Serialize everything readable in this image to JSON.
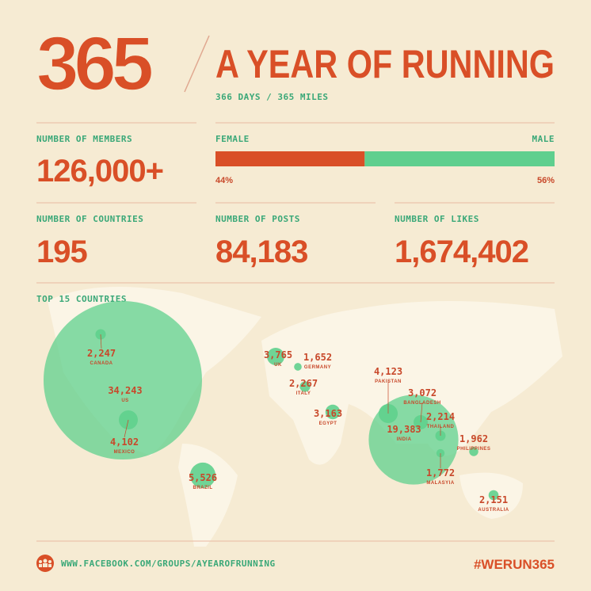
{
  "header": {
    "logo": "365",
    "title": "A YEAR OF RUNNING",
    "subtitle": "366 DAYS / 365 MILES"
  },
  "stats": {
    "members": {
      "label": "NUMBER OF MEMBERS",
      "value": "126,000+"
    },
    "countries": {
      "label": "NUMBER OF COUNTRIES",
      "value": "195"
    },
    "posts": {
      "label": "NUMBER OF POSTS",
      "value": "84,183"
    },
    "likes": {
      "label": "NUMBER OF LIKES",
      "value": "1,674,402"
    }
  },
  "gender": {
    "female": {
      "label": "FEMALE",
      "value": 44,
      "value_label": "44%",
      "color": "#d94f27"
    },
    "male": {
      "label": "MALE",
      "value": 56,
      "value_label": "56%",
      "color": "#5fcf8e"
    }
  },
  "top_countries": {
    "title": "TOP 15 COUNTRIES",
    "color": "#5fd08d",
    "countries": [
      {
        "name": "CANADA",
        "value": 2247,
        "label": "2,247"
      },
      {
        "name": "US",
        "value": 34243,
        "label": "34,243"
      },
      {
        "name": "MEXICO",
        "value": 4102,
        "label": "4,102"
      },
      {
        "name": "BRAZIL",
        "value": 5526,
        "label": "5,526"
      },
      {
        "name": "UK",
        "value": 3765,
        "label": "3,765"
      },
      {
        "name": "GERMANY",
        "value": 1652,
        "label": "1,652"
      },
      {
        "name": "ITALY",
        "value": 2267,
        "label": "2,267"
      },
      {
        "name": "EGYPT",
        "value": 3163,
        "label": "3,163"
      },
      {
        "name": "PAKISTAN",
        "value": 4123,
        "label": "4,123"
      },
      {
        "name": "BANGLADESH",
        "value": 3072,
        "label": "3,072"
      },
      {
        "name": "INDIA",
        "value": 19383,
        "label": "19,383"
      },
      {
        "name": "THAILAND",
        "value": 2214,
        "label": "2,214"
      },
      {
        "name": "PHILIPPINES",
        "value": 1962,
        "label": "1,962"
      },
      {
        "name": "MALASYIA",
        "value": 1772,
        "label": "1,772"
      },
      {
        "name": "AUSTRALIA",
        "value": 2151,
        "label": "2,151"
      }
    ]
  },
  "footer": {
    "url": "WWW.FACEBOOK.COM/GROUPS/AYEAROFRUNNING",
    "hashtag": "#WERUN365"
  }
}
